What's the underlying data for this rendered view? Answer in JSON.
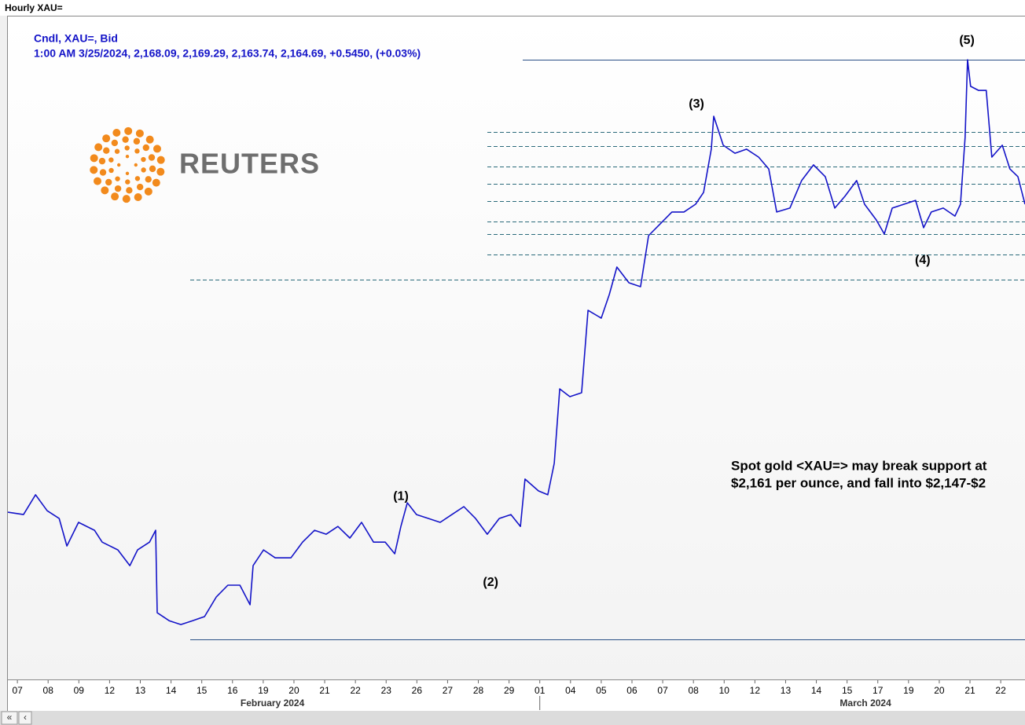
{
  "window_title": "Hourly XAU=",
  "chart_data": {
    "type": "line",
    "header": [
      "Cndl, XAU=, Bid",
      "1:00 AM 3/25/2024, 2,168.09, 2,169.29, 2,163.74, 2,164.69, +0.5450, (+0.03%)"
    ],
    "logo": "REUTERS",
    "annotations": [
      {
        "text": "(1)",
        "x": 12.48,
        "y": 2041.3
      },
      {
        "text": "(2)",
        "x": 15.4,
        "y": 2005.6
      },
      {
        "text": "(3)",
        "x": 22.1,
        "y": 2203.5
      },
      {
        "text": "(4)",
        "x": 29.46,
        "y": 2138.8
      },
      {
        "text": "(5)",
        "x": 30.9,
        "y": 2229.8
      }
    ],
    "note": [
      "Spot gold <XAU=> may break support at",
      "$2,161 per ounce, and fall into $2,147-$2"
    ],
    "series": [
      {
        "name": "XAU=",
        "color": "#1414c8",
        "x": [
          -0.31,
          0.2,
          0.59,
          0.97,
          1.36,
          1.61,
          1.99,
          2.51,
          2.76,
          3.27,
          3.66,
          3.91,
          4.3,
          4.5,
          4.55,
          4.94,
          5.32,
          5.7,
          6.09,
          6.47,
          6.85,
          7.24,
          7.57,
          7.67,
          8.01,
          8.39,
          8.9,
          9.28,
          9.67,
          10.05,
          10.43,
          10.82,
          11.2,
          11.59,
          11.97,
          12.28,
          12.48,
          12.69,
          12.99,
          13.38,
          13.76,
          14.14,
          14.53,
          14.91,
          15.29,
          15.68,
          16.06,
          16.37,
          16.52,
          16.96,
          17.26,
          17.47,
          17.65,
          17.98,
          18.36,
          18.57,
          19.0,
          19.26,
          19.51,
          19.9,
          20.28,
          20.54,
          20.92,
          21.3,
          21.69,
          22.07,
          22.33,
          22.58,
          22.66,
          22.97,
          23.35,
          23.73,
          24.12,
          24.45,
          24.71,
          25.14,
          25.52,
          25.91,
          26.29,
          26.6,
          26.93,
          27.31,
          27.57,
          27.95,
          28.21,
          28.47,
          28.85,
          29.23,
          29.49,
          29.74,
          30.13,
          30.51,
          30.69,
          30.84,
          30.92,
          31.02,
          31.28,
          31.53,
          31.71,
          32.05,
          32.3,
          32.56,
          32.79
        ],
        "values": [
          2034.8,
          2033.8,
          2042.0,
          2035.4,
          2032.2,
          2020.8,
          2030.6,
          2027.3,
          2022.4,
          2019.2,
          2012.7,
          2019.2,
          2022.4,
          2027.3,
          1993.2,
          1989.9,
          1988.3,
          1989.9,
          1991.6,
          1999.7,
          2004.6,
          2004.6,
          1996.5,
          2012.7,
          2019.2,
          2015.9,
          2015.9,
          2022.4,
          2027.3,
          2025.7,
          2028.9,
          2024.1,
          2030.6,
          2022.4,
          2022.4,
          2017.6,
          2028.9,
          2038.7,
          2033.8,
          2032.2,
          2030.6,
          2033.8,
          2037.1,
          2032.2,
          2025.7,
          2032.2,
          2033.8,
          2028.9,
          2048.5,
          2043.6,
          2042.0,
          2055.0,
          2085.8,
          2082.6,
          2084.2,
          2118.3,
          2115.1,
          2124.8,
          2136.2,
          2129.7,
          2128.1,
          2149.2,
          2154.1,
          2159.0,
          2159.0,
          2162.2,
          2167.1,
          2185.0,
          2198.6,
          2186.6,
          2183.3,
          2185.0,
          2181.7,
          2176.8,
          2159.0,
          2160.6,
          2172.0,
          2178.5,
          2173.6,
          2160.6,
          2165.5,
          2172.0,
          2162.2,
          2155.7,
          2149.9,
          2160.6,
          2162.2,
          2163.8,
          2152.5,
          2159.0,
          2160.6,
          2157.3,
          2162.2,
          2189.8,
          2222.0,
          2211.0,
          2209.3,
          2209.3,
          2181.7,
          2186.6,
          2176.8,
          2173.6,
          2162.2
        ]
      }
    ],
    "levels": [
      {
        "value": 2222.0,
        "style": "solid"
      },
      {
        "value": 2192.1,
        "style": "dashed"
      },
      {
        "value": 2186.2,
        "style": "dashed"
      },
      {
        "value": 2177.8,
        "style": "dashed"
      },
      {
        "value": 2170.6,
        "style": "dashed"
      },
      {
        "value": 2163.5,
        "style": "dashed"
      },
      {
        "value": 2155.0,
        "style": "dashed"
      },
      {
        "value": 2149.8,
        "style": "dashed"
      },
      {
        "value": 2141.4,
        "style": "dashed"
      },
      {
        "value": 2131.0,
        "style": "dashed"
      },
      {
        "value": 1982.1,
        "style": "solid"
      }
    ],
    "xlim": [
      -0.31,
      32.79
    ],
    "ylim": [
      1965.6,
      2240.2
    ],
    "xticks": [
      {
        "value": 0,
        "label": "07"
      },
      {
        "value": 1,
        "label": "08"
      },
      {
        "value": 2,
        "label": "09"
      },
      {
        "value": 3,
        "label": "12"
      },
      {
        "value": 4,
        "label": "13"
      },
      {
        "value": 5,
        "label": "14"
      },
      {
        "value": 6,
        "label": "15"
      },
      {
        "value": 7,
        "label": "16"
      },
      {
        "value": 8,
        "label": "19"
      },
      {
        "value": 9,
        "label": "20"
      },
      {
        "value": 10,
        "label": "21"
      },
      {
        "value": 11,
        "label": "22"
      },
      {
        "value": 12,
        "label": "23"
      },
      {
        "value": 13,
        "label": "26"
      },
      {
        "value": 14,
        "label": "27"
      },
      {
        "value": 15,
        "label": "28"
      },
      {
        "value": 16,
        "label": "29"
      },
      {
        "value": 17,
        "label": "01"
      },
      {
        "value": 18,
        "label": "04"
      },
      {
        "value": 19,
        "label": "05"
      },
      {
        "value": 20,
        "label": "06"
      },
      {
        "value": 21,
        "label": "07"
      },
      {
        "value": 22,
        "label": "08"
      },
      {
        "value": 23,
        "label": "10"
      },
      {
        "value": 24,
        "label": "12"
      },
      {
        "value": 25,
        "label": "13"
      },
      {
        "value": 26,
        "label": "14"
      },
      {
        "value": 27,
        "label": "15"
      },
      {
        "value": 28,
        "label": "17"
      },
      {
        "value": 29,
        "label": "19"
      },
      {
        "value": 30,
        "label": "20"
      },
      {
        "value": 31,
        "label": "21"
      },
      {
        "value": 32,
        "label": "22"
      }
    ],
    "months": [
      {
        "value": 8.3,
        "label": "February 2024"
      },
      {
        "value": 27.6,
        "label": "March 2024"
      }
    ],
    "month_divider": 17
  }
}
